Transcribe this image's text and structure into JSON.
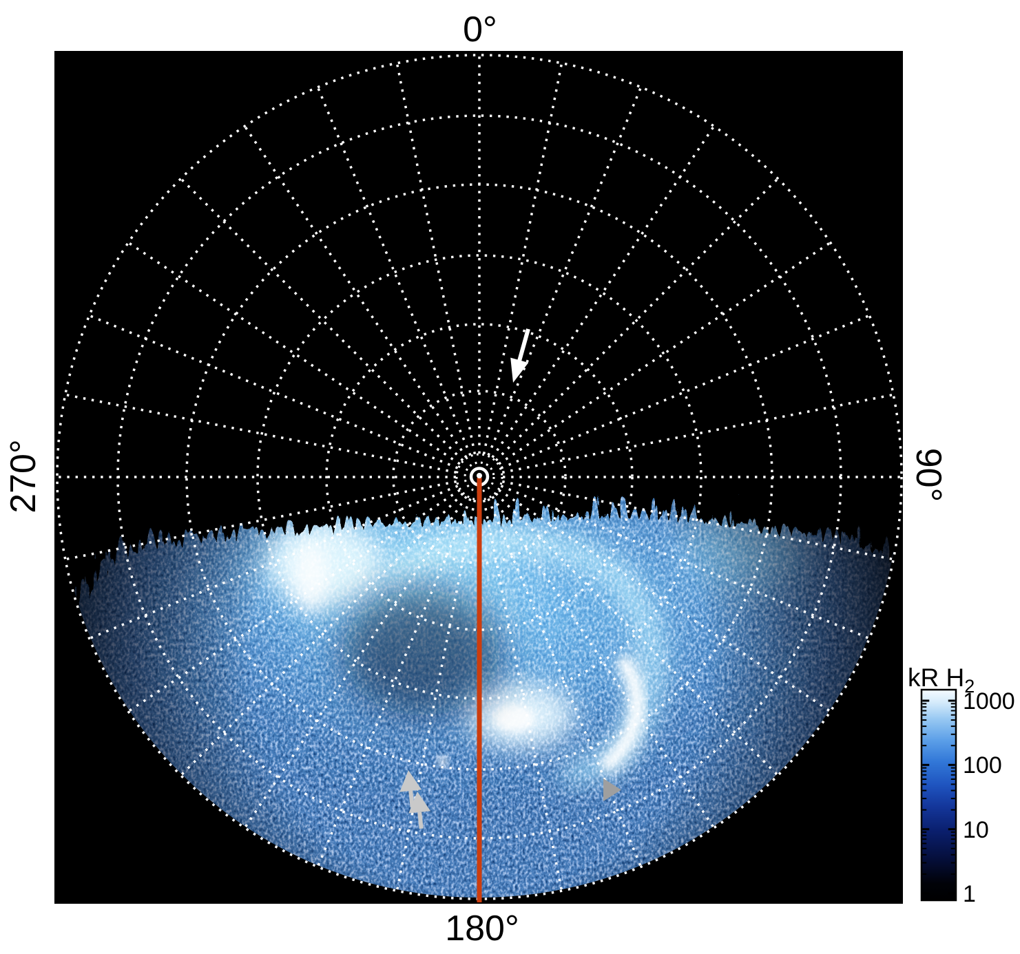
{
  "page": {
    "background": "#ffffff"
  },
  "plot": {
    "bg": "#000000",
    "grid_color": "#ffffff",
    "meridian_color": "#cc3d0e",
    "angle_labels": {
      "top": "0°",
      "right": "90°",
      "bottom": "180°",
      "left": "270°"
    }
  },
  "colorbar": {
    "title_main": "kR H",
    "title_sub": "2",
    "ticks": [
      "1000",
      "100",
      "10",
      "1"
    ]
  },
  "chart_data": {
    "type": "heatmap",
    "projection": "polar",
    "pole": "center of disc",
    "azimuth_tick_labels": [
      "0°",
      "90°",
      "180°",
      "270°"
    ],
    "azimuth_grid_step_deg": 11.25,
    "radial_grid_rings": 8,
    "grid_style": "white dotted lines on black background",
    "colorbar": {
      "label": "kR H2",
      "scale": "log",
      "tick_values": [
        1,
        10,
        100,
        1000
      ],
      "colormap": "black -> dark blue -> blue -> light blue -> white"
    },
    "content": "Polar-projection map of auroral H2 emission brightness (kilorayleigh). Speckled blue emission fills the lower half of the disc (azimuths ~90-270 deg); upper half is dark.",
    "features": [
      {
        "name": "ragged emission boundary with fine vertical striations",
        "location": "horizontal edge just below the pole, across full disc"
      },
      {
        "name": "bright emission patch",
        "location": "upper-left of emission region"
      },
      {
        "name": "C-shaped main auroral arc opening to lower-left",
        "location": "center-right of emission region"
      },
      {
        "name": "brightest white crescent arc",
        "location": "right of the 180-deg meridian, mid-low latitude"
      },
      {
        "name": "central bright blob",
        "location": "near 180-deg meridian below pole"
      },
      {
        "name": "small bright spot",
        "location": "left of meridian near the two gray arrows"
      }
    ],
    "annotations": [
      {
        "type": "arrow",
        "color": "#ffffff",
        "direction": "points down-left toward the pole region",
        "location": "upper half, ~20 deg azimuth"
      },
      {
        "type": "arrow",
        "color": "#c9c9c9",
        "direction": "points up",
        "location": "lower-left emission region (first of pair)"
      },
      {
        "type": "arrow",
        "color": "#c9c9c9",
        "direction": "points up",
        "location": "lower-left emission region (second of pair)"
      },
      {
        "type": "triangle-marker",
        "color": "#9f9f9f",
        "direction": "points right",
        "location": "right-center of emission region"
      }
    ],
    "meridian_marker": {
      "azimuth_deg": 180,
      "style": "solid line from pole to outer edge",
      "color": "#cc3d0e"
    }
  }
}
